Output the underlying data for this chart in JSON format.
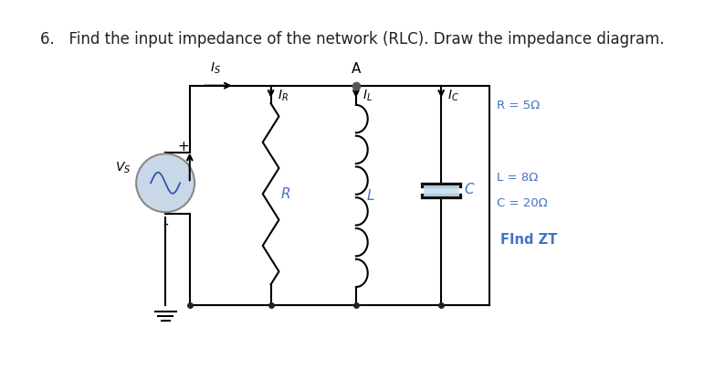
{
  "title": "6.   Find the input impedance of the network (RLC). Draw the impedance diagram.",
  "title_fontsize": 12,
  "bg_color": "#ffffff",
  "line_color": "#000000",
  "source_color": "#c8d8e8",
  "source_edge_color": "#888888",
  "component_color": "#000000",
  "label_color_blue": "#4472c4",
  "vs_label": "$V_S$",
  "plus_label": "+",
  "minus_label": "-",
  "is_label": "$I_S$",
  "a_label": "A",
  "ir_label": "$I_R$",
  "il_label": "$I_L$",
  "ic_label": "$I_C$",
  "r_label": "R",
  "l_label": "L",
  "c_label": "C",
  "r_val": "R = 5Ω",
  "l_val": "L = 8Ω",
  "c_val": "C = 20Ω",
  "find_zt": "FInd ZT"
}
